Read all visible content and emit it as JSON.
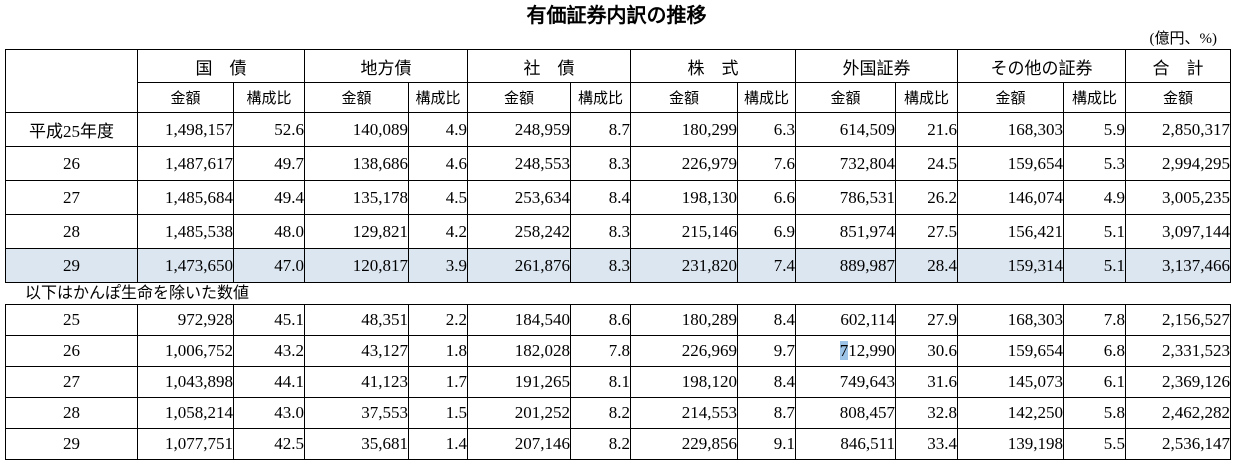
{
  "title": "有価証券内訳の推移",
  "unit_label": "(億円、%)",
  "note": "以下はかんぽ生命を除いた数値",
  "colors": {
    "highlight_row": "#dce6f1",
    "text_selection": "#9dc3e6",
    "border": "#000000"
  },
  "columns": [
    {
      "label": "国　債",
      "subs": [
        "金額",
        "構成比"
      ]
    },
    {
      "label": "地方債",
      "subs": [
        "金額",
        "構成比"
      ]
    },
    {
      "label": "社　債",
      "subs": [
        "金額",
        "構成比"
      ]
    },
    {
      "label": "株　式",
      "subs": [
        "金額",
        "構成比"
      ]
    },
    {
      "label": "外国証券",
      "subs": [
        "金額",
        "構成比"
      ]
    },
    {
      "label": "その他の証券",
      "subs": [
        "金額",
        "構成比"
      ]
    },
    {
      "label": "合　計",
      "subs": [
        "金額"
      ]
    }
  ],
  "section1": {
    "rows": [
      {
        "label": "平成25年度",
        "highlight": false,
        "values": [
          "1,498,157",
          "52.6",
          "140,089",
          "4.9",
          "248,959",
          "8.7",
          "180,299",
          "6.3",
          "614,509",
          "21.6",
          "168,303",
          "5.9",
          "2,850,317"
        ]
      },
      {
        "label": "26",
        "highlight": false,
        "values": [
          "1,487,617",
          "49.7",
          "138,686",
          "4.6",
          "248,553",
          "8.3",
          "226,979",
          "7.6",
          "732,804",
          "24.5",
          "159,654",
          "5.3",
          "2,994,295"
        ]
      },
      {
        "label": "27",
        "highlight": false,
        "values": [
          "1,485,684",
          "49.4",
          "135,178",
          "4.5",
          "253,634",
          "8.4",
          "198,130",
          "6.6",
          "786,531",
          "26.2",
          "146,074",
          "4.9",
          "3,005,235"
        ]
      },
      {
        "label": "28",
        "highlight": false,
        "values": [
          "1,485,538",
          "48.0",
          "129,821",
          "4.2",
          "258,242",
          "8.3",
          "215,146",
          "6.9",
          "851,974",
          "27.5",
          "156,421",
          "5.1",
          "3,097,144"
        ]
      },
      {
        "label": "29",
        "highlight": true,
        "values": [
          "1,473,650",
          "47.0",
          "120,817",
          "3.9",
          "261,876",
          "8.3",
          "231,820",
          "7.4",
          "889,987",
          "28.4",
          "159,314",
          "5.1",
          "3,137,466"
        ]
      }
    ]
  },
  "section2": {
    "selection": {
      "row": 1,
      "col": 8,
      "text": "7"
    },
    "rows": [
      {
        "label": "25",
        "highlight": false,
        "values": [
          "972,928",
          "45.1",
          "48,351",
          "2.2",
          "184,540",
          "8.6",
          "180,289",
          "8.4",
          "602,114",
          "27.9",
          "168,303",
          "7.8",
          "2,156,527"
        ]
      },
      {
        "label": "26",
        "highlight": false,
        "values": [
          "1,006,752",
          "43.2",
          "43,127",
          "1.8",
          "182,028",
          "7.8",
          "226,969",
          "9.7",
          "712,990",
          "30.6",
          "159,654",
          "6.8",
          "2,331,523"
        ]
      },
      {
        "label": "27",
        "highlight": false,
        "values": [
          "1,043,898",
          "44.1",
          "41,123",
          "1.7",
          "191,265",
          "8.1",
          "198,120",
          "8.4",
          "749,643",
          "31.6",
          "145,073",
          "6.1",
          "2,369,126"
        ]
      },
      {
        "label": "28",
        "highlight": false,
        "values": [
          "1,058,214",
          "43.0",
          "37,553",
          "1.5",
          "201,252",
          "8.2",
          "214,553",
          "8.7",
          "808,457",
          "32.8",
          "142,250",
          "5.8",
          "2,462,282"
        ]
      },
      {
        "label": "29",
        "highlight": false,
        "values": [
          "1,077,751",
          "42.5",
          "35,681",
          "1.4",
          "207,146",
          "8.2",
          "229,856",
          "9.1",
          "846,511",
          "33.4",
          "139,198",
          "5.5",
          "2,536,147"
        ]
      }
    ]
  }
}
